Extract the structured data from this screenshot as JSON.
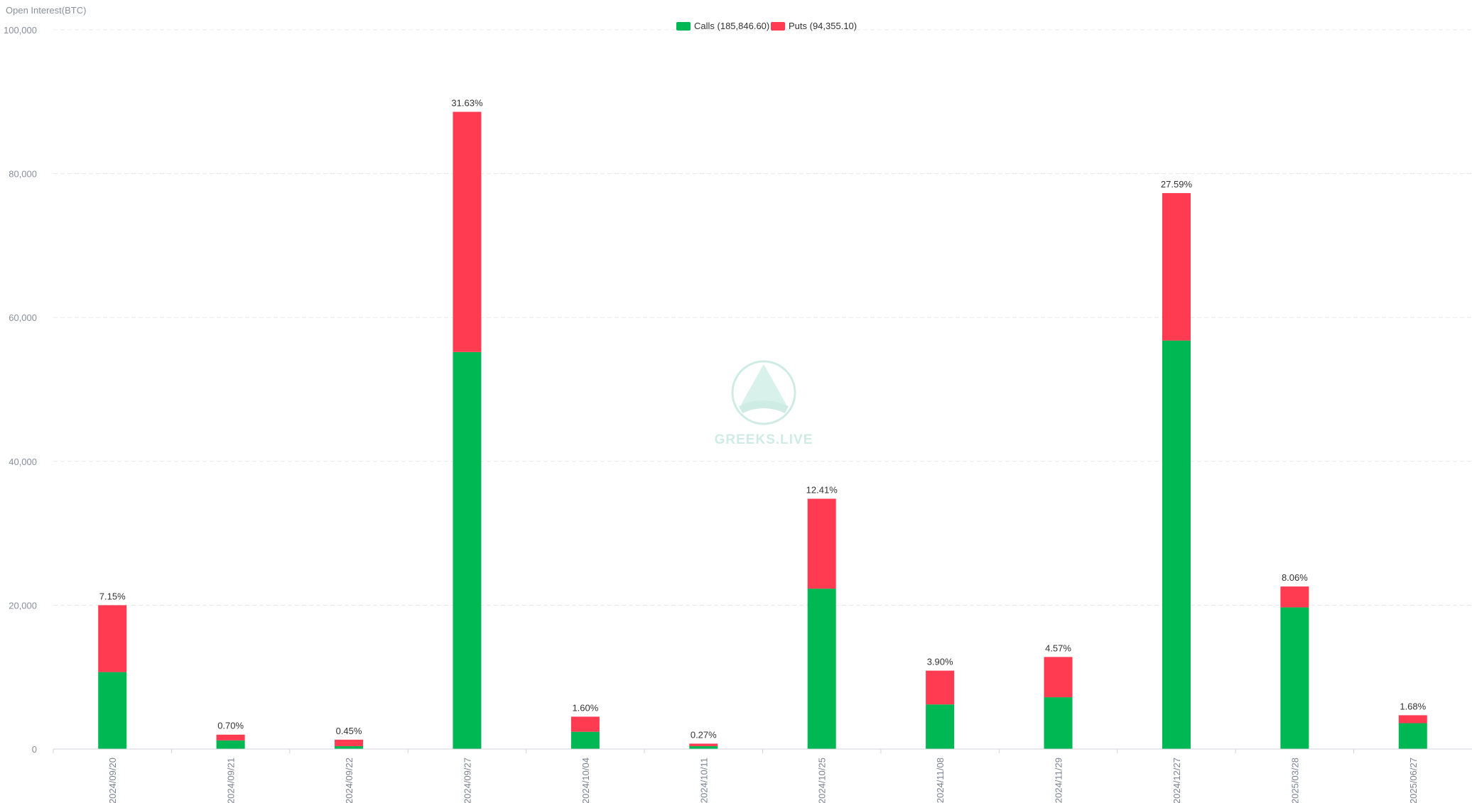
{
  "chart_data": {
    "type": "bar",
    "stacked": true,
    "ylabel": "Open Interest(BTC)",
    "ylim": [
      0,
      100000
    ],
    "yticks": [
      "0",
      "20,000",
      "40,000",
      "60,000",
      "80,000",
      "100,000"
    ],
    "grid": true,
    "legend_position": "top-center",
    "categories": [
      "2024/09/20",
      "2024/09/21",
      "2024/09/22",
      "2024/09/27",
      "2024/10/04",
      "2024/10/11",
      "2024/10/25",
      "2024/11/08",
      "2024/11/29",
      "2024/12/27",
      "2025/03/28",
      "2025/06/27"
    ],
    "series": [
      {
        "name": "Calls (185,846.60)",
        "color": "#00b853",
        "values": [
          10700,
          1200,
          400,
          55200,
          2400,
          400,
          22300,
          6200,
          7200,
          56800,
          19700,
          3600
        ]
      },
      {
        "name": "Puts (94,355.10)",
        "color": "#ff3b52",
        "values": [
          9300,
          800,
          900,
          33400,
          2100,
          350,
          12500,
          4700,
          5600,
          20500,
          2900,
          1100
        ]
      }
    ],
    "data_labels": [
      "7.15%",
      "0.70%",
      "0.45%",
      "31.63%",
      "1.60%",
      "0.27%",
      "12.41%",
      "3.90%",
      "4.57%",
      "27.59%",
      "8.06%",
      "1.68%"
    ],
    "watermark": "GREEKS.LIVE"
  }
}
